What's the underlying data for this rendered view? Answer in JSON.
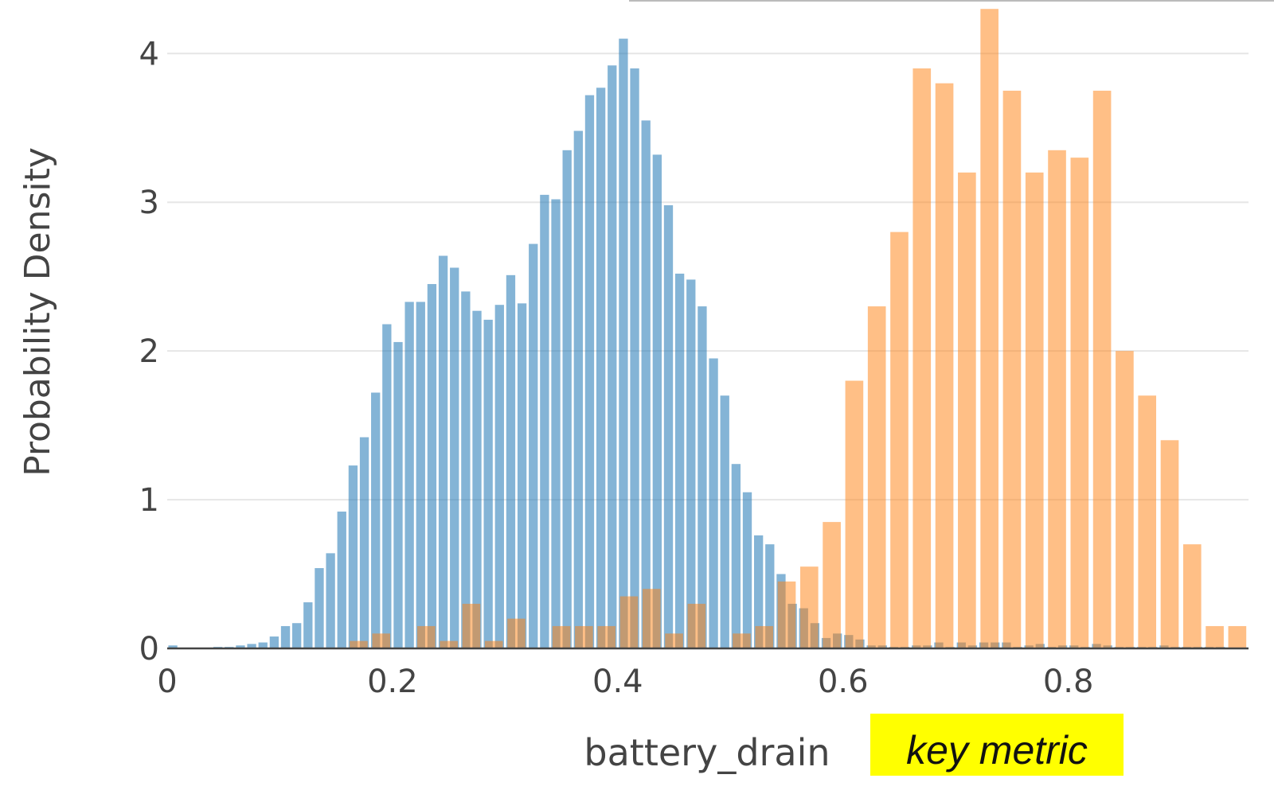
{
  "chart_data": {
    "type": "histogram",
    "y_label": "Probability Density",
    "x_label": "battery_drain",
    "annotation": "key metric",
    "xlim": [
      0,
      0.96
    ],
    "ylim": [
      0,
      4.36
    ],
    "xticks": [
      0,
      0.2,
      0.4,
      0.6,
      0.8
    ],
    "yticks": [
      0,
      1,
      2,
      3,
      4
    ],
    "grid": true,
    "barmode": "overlay",
    "series": [
      {
        "color": "#1f77b4",
        "opacity": 0.55,
        "bins": [
          0,
          0.01,
          0.02,
          0.03,
          0.04,
          0.05,
          0.06,
          0.07,
          0.08,
          0.09,
          0.1,
          0.11,
          0.12,
          0.13,
          0.14,
          0.15,
          0.16,
          0.17,
          0.18,
          0.19,
          0.2,
          0.21,
          0.22,
          0.23,
          0.24,
          0.25,
          0.26,
          0.27,
          0.28,
          0.29,
          0.3,
          0.31,
          0.32,
          0.33,
          0.34,
          0.35,
          0.36,
          0.37,
          0.38,
          0.39,
          0.4,
          0.41,
          0.42,
          0.43,
          0.44,
          0.45,
          0.46,
          0.47,
          0.48,
          0.49,
          0.5,
          0.51,
          0.52,
          0.53,
          0.54,
          0.55,
          0.56,
          0.57,
          0.58,
          0.59,
          0.6,
          0.61,
          0.62,
          0.63,
          0.64,
          0.65,
          0.66,
          0.67,
          0.68,
          0.69,
          0.7,
          0.71,
          0.72,
          0.73,
          0.74,
          0.75,
          0.76,
          0.77,
          0.78,
          0.79,
          0.8,
          0.81,
          0.82,
          0.83,
          0.84,
          0.85,
          0.86,
          0.87,
          0.88,
          0.89,
          0.9,
          0.91,
          0.92,
          0.93,
          0.94
        ],
        "values": [
          0.02,
          0,
          0,
          0,
          0.01,
          0.01,
          0.02,
          0.03,
          0.04,
          0.08,
          0.15,
          0.17,
          0.31,
          0.54,
          0.64,
          0.92,
          1.23,
          1.42,
          1.72,
          2.18,
          2.06,
          2.33,
          2.33,
          2.45,
          2.64,
          2.56,
          2.4,
          2.27,
          2.21,
          2.31,
          2.51,
          2.32,
          2.72,
          3.05,
          3.02,
          3.35,
          3.48,
          3.72,
          3.77,
          3.92,
          4.1,
          3.9,
          3.55,
          3.32,
          2.98,
          2.52,
          2.48,
          2.3,
          1.95,
          1.7,
          1.24,
          1.05,
          0.76,
          0.7,
          0.5,
          0.3,
          0.27,
          0.17,
          0.07,
          0.1,
          0.09,
          0.06,
          0.02,
          0.02,
          0.01,
          0.01,
          0.02,
          0.02,
          0.04,
          0.01,
          0.04,
          0.02,
          0.04,
          0.04,
          0.04,
          0.01,
          0.02,
          0.03,
          0.01,
          0.02,
          0.02,
          0.01,
          0.03,
          0.02,
          0.01,
          0.01,
          0.01,
          0.01,
          0.02,
          0.01,
          0.01,
          0.01,
          0.01,
          0.01
        ]
      },
      {
        "color": "#ff7f0e",
        "opacity": 0.5,
        "bins": [
          0.16,
          0.18,
          0.2,
          0.22,
          0.24,
          0.26,
          0.28,
          0.3,
          0.32,
          0.34,
          0.36,
          0.38,
          0.4,
          0.42,
          0.44,
          0.46,
          0.48,
          0.5,
          0.52,
          0.54,
          0.56,
          0.58,
          0.6,
          0.62,
          0.64,
          0.66,
          0.68,
          0.7,
          0.72,
          0.74,
          0.76,
          0.78,
          0.8,
          0.82,
          0.84,
          0.86,
          0.88,
          0.9,
          0.92,
          0.94,
          0.96
        ],
        "values": [
          0.05,
          0.1,
          0,
          0.15,
          0.05,
          0.3,
          0.05,
          0.2,
          0,
          0.15,
          0.15,
          0.15,
          0.35,
          0.4,
          0.1,
          0.3,
          0,
          0.1,
          0.15,
          0.45,
          0.55,
          0.85,
          1.8,
          2.3,
          2.8,
          3.9,
          3.8,
          3.2,
          4.3,
          3.75,
          3.2,
          3.35,
          3.3,
          3.75,
          2.0,
          1.7,
          1.4,
          0.7,
          0.15,
          0.15
        ]
      }
    ]
  }
}
